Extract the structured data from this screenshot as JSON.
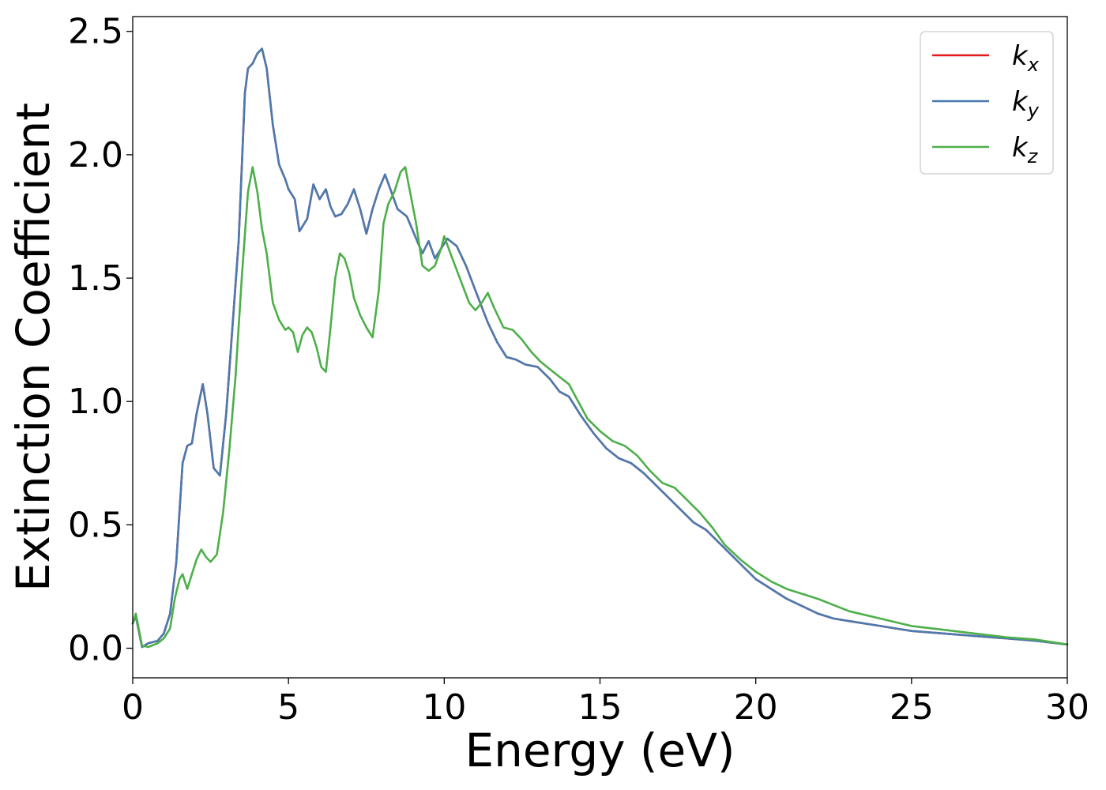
{
  "chart_data": {
    "type": "line",
    "title": "",
    "xlabel": "Energy (eV)",
    "ylabel": "Extinction Coefficient",
    "xlim": [
      0,
      30
    ],
    "ylim": [
      -0.12,
      2.56
    ],
    "xticks": [
      0,
      5,
      10,
      15,
      20,
      25,
      30
    ],
    "xtick_labels": [
      "0",
      "5",
      "10",
      "15",
      "20",
      "25",
      "30"
    ],
    "yticks": [
      0.0,
      0.5,
      1.0,
      1.5,
      2.0,
      2.5
    ],
    "ytick_labels": [
      "0.0",
      "0.5",
      "1.0",
      "1.5",
      "2.0",
      "2.5"
    ],
    "grid": false,
    "legend_position": "top-right",
    "series": [
      {
        "name": "k_x",
        "legend_base": "k",
        "legend_sub": "x",
        "color": "#e41a1c",
        "x": [
          0,
          0.1,
          0.3,
          0.5,
          0.8,
          1.0,
          1.2,
          1.4,
          1.6,
          1.75,
          1.9,
          2.05,
          2.25,
          2.4,
          2.6,
          2.8,
          3.0,
          3.2,
          3.4,
          3.6,
          3.7,
          3.85,
          4.0,
          4.15,
          4.3,
          4.5,
          4.7,
          4.9,
          5.0,
          5.2,
          5.35,
          5.5,
          5.6,
          5.8,
          6.0,
          6.2,
          6.35,
          6.5,
          6.7,
          6.9,
          7.1,
          7.3,
          7.5,
          7.7,
          7.9,
          8.1,
          8.3,
          8.5,
          8.8,
          9.1,
          9.3,
          9.5,
          9.7,
          9.9,
          10.1,
          10.4,
          10.7,
          11.0,
          11.4,
          11.7,
          12.0,
          12.3,
          12.6,
          13.0,
          13.4,
          13.7,
          14.0,
          14.4,
          14.8,
          15.2,
          15.6,
          16.0,
          16.4,
          16.8,
          17.2,
          17.6,
          18.0,
          18.4,
          18.8,
          19.2,
          19.6,
          20.0,
          20.5,
          21.0,
          21.5,
          22.0,
          22.5,
          23.0,
          24.0,
          25.0,
          26.0,
          27.0,
          28.0,
          29.0,
          30.0
        ],
        "values": [
          0.1,
          0.13,
          0.005,
          0.02,
          0.03,
          0.06,
          0.14,
          0.35,
          0.75,
          0.82,
          0.83,
          0.95,
          1.07,
          0.95,
          0.73,
          0.7,
          0.95,
          1.3,
          1.65,
          2.25,
          2.35,
          2.37,
          2.41,
          2.43,
          2.35,
          2.12,
          1.96,
          1.9,
          1.86,
          1.82,
          1.69,
          1.72,
          1.74,
          1.88,
          1.82,
          1.86,
          1.79,
          1.75,
          1.76,
          1.8,
          1.86,
          1.78,
          1.68,
          1.78,
          1.86,
          1.92,
          1.85,
          1.78,
          1.75,
          1.66,
          1.6,
          1.65,
          1.58,
          1.62,
          1.66,
          1.63,
          1.55,
          1.45,
          1.32,
          1.24,
          1.18,
          1.17,
          1.15,
          1.14,
          1.09,
          1.04,
          1.02,
          0.94,
          0.87,
          0.81,
          0.77,
          0.75,
          0.71,
          0.66,
          0.61,
          0.56,
          0.51,
          0.48,
          0.43,
          0.38,
          0.33,
          0.28,
          0.24,
          0.2,
          0.17,
          0.14,
          0.12,
          0.11,
          0.09,
          0.07,
          0.06,
          0.05,
          0.04,
          0.03,
          0.015
        ]
      },
      {
        "name": "k_y",
        "legend_base": "k",
        "legend_sub": "y",
        "color": "#4a7bb0",
        "x": [
          0,
          0.1,
          0.3,
          0.5,
          0.8,
          1.0,
          1.2,
          1.4,
          1.6,
          1.75,
          1.9,
          2.05,
          2.25,
          2.4,
          2.6,
          2.8,
          3.0,
          3.2,
          3.4,
          3.6,
          3.7,
          3.85,
          4.0,
          4.15,
          4.3,
          4.5,
          4.7,
          4.9,
          5.0,
          5.2,
          5.35,
          5.5,
          5.6,
          5.8,
          6.0,
          6.2,
          6.35,
          6.5,
          6.7,
          6.9,
          7.1,
          7.3,
          7.5,
          7.7,
          7.9,
          8.1,
          8.3,
          8.5,
          8.8,
          9.1,
          9.3,
          9.5,
          9.7,
          9.9,
          10.1,
          10.4,
          10.7,
          11.0,
          11.4,
          11.7,
          12.0,
          12.3,
          12.6,
          13.0,
          13.4,
          13.7,
          14.0,
          14.4,
          14.8,
          15.2,
          15.6,
          16.0,
          16.4,
          16.8,
          17.2,
          17.6,
          18.0,
          18.4,
          18.8,
          19.2,
          19.6,
          20.0,
          20.5,
          21.0,
          21.5,
          22.0,
          22.5,
          23.0,
          24.0,
          25.0,
          26.0,
          27.0,
          28.0,
          29.0,
          30.0
        ],
        "values": [
          0.1,
          0.13,
          0.005,
          0.02,
          0.03,
          0.06,
          0.14,
          0.35,
          0.75,
          0.82,
          0.83,
          0.95,
          1.07,
          0.95,
          0.73,
          0.7,
          0.95,
          1.3,
          1.65,
          2.25,
          2.35,
          2.37,
          2.41,
          2.43,
          2.35,
          2.12,
          1.96,
          1.9,
          1.86,
          1.82,
          1.69,
          1.72,
          1.74,
          1.88,
          1.82,
          1.86,
          1.79,
          1.75,
          1.76,
          1.8,
          1.86,
          1.78,
          1.68,
          1.78,
          1.86,
          1.92,
          1.85,
          1.78,
          1.75,
          1.66,
          1.6,
          1.65,
          1.58,
          1.62,
          1.66,
          1.63,
          1.55,
          1.45,
          1.32,
          1.24,
          1.18,
          1.17,
          1.15,
          1.14,
          1.09,
          1.04,
          1.02,
          0.94,
          0.87,
          0.81,
          0.77,
          0.75,
          0.71,
          0.66,
          0.61,
          0.56,
          0.51,
          0.48,
          0.43,
          0.38,
          0.33,
          0.28,
          0.24,
          0.2,
          0.17,
          0.14,
          0.12,
          0.11,
          0.09,
          0.07,
          0.06,
          0.05,
          0.04,
          0.03,
          0.015
        ]
      },
      {
        "name": "k_z",
        "legend_base": "k",
        "legend_sub": "z",
        "color": "#4daf4a",
        "x": [
          0,
          0.1,
          0.3,
          0.5,
          0.8,
          1.0,
          1.2,
          1.35,
          1.5,
          1.6,
          1.75,
          1.9,
          2.05,
          2.2,
          2.35,
          2.5,
          2.7,
          2.9,
          3.1,
          3.3,
          3.5,
          3.7,
          3.85,
          4.0,
          4.15,
          4.3,
          4.5,
          4.7,
          4.9,
          5.0,
          5.15,
          5.3,
          5.45,
          5.6,
          5.75,
          5.9,
          6.05,
          6.2,
          6.35,
          6.5,
          6.65,
          6.8,
          6.95,
          7.1,
          7.3,
          7.5,
          7.7,
          7.9,
          8.05,
          8.2,
          8.4,
          8.6,
          8.75,
          8.9,
          9.1,
          9.3,
          9.5,
          9.7,
          9.9,
          10.0,
          10.2,
          10.5,
          10.8,
          11.0,
          11.2,
          11.4,
          11.6,
          11.9,
          12.2,
          12.5,
          12.8,
          13.1,
          13.4,
          13.7,
          14.0,
          14.3,
          14.6,
          15.0,
          15.4,
          15.8,
          16.2,
          16.6,
          17.0,
          17.4,
          17.8,
          18.2,
          18.6,
          19.0,
          19.5,
          20.0,
          20.5,
          21.0,
          22.0,
          23.0,
          24.0,
          25.0,
          26.0,
          27.0,
          28.0,
          29.0,
          30.0
        ],
        "values": [
          0.1,
          0.14,
          0.01,
          0.005,
          0.02,
          0.04,
          0.08,
          0.2,
          0.28,
          0.3,
          0.24,
          0.3,
          0.36,
          0.4,
          0.37,
          0.35,
          0.38,
          0.55,
          0.8,
          1.1,
          1.5,
          1.85,
          1.95,
          1.85,
          1.7,
          1.6,
          1.4,
          1.33,
          1.29,
          1.3,
          1.28,
          1.2,
          1.27,
          1.3,
          1.28,
          1.22,
          1.14,
          1.12,
          1.3,
          1.5,
          1.6,
          1.58,
          1.52,
          1.42,
          1.35,
          1.3,
          1.26,
          1.45,
          1.72,
          1.8,
          1.85,
          1.93,
          1.95,
          1.85,
          1.72,
          1.55,
          1.53,
          1.55,
          1.62,
          1.67,
          1.6,
          1.5,
          1.4,
          1.37,
          1.4,
          1.44,
          1.38,
          1.3,
          1.29,
          1.25,
          1.2,
          1.16,
          1.13,
          1.1,
          1.07,
          1.0,
          0.93,
          0.88,
          0.84,
          0.82,
          0.78,
          0.72,
          0.67,
          0.65,
          0.6,
          0.55,
          0.49,
          0.42,
          0.36,
          0.31,
          0.27,
          0.24,
          0.2,
          0.15,
          0.12,
          0.09,
          0.075,
          0.06,
          0.045,
          0.035,
          0.015
        ]
      }
    ]
  }
}
